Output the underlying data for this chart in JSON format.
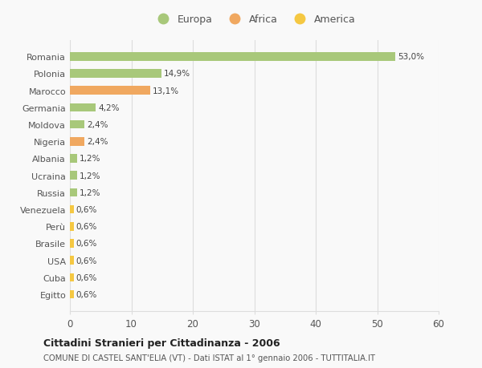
{
  "categories": [
    "Egitto",
    "Cuba",
    "USA",
    "Brasile",
    "Perù",
    "Venezuela",
    "Russia",
    "Ucraina",
    "Albania",
    "Nigeria",
    "Moldova",
    "Germania",
    "Marocco",
    "Polonia",
    "Romania"
  ],
  "values": [
    0.6,
    0.6,
    0.6,
    0.6,
    0.6,
    0.6,
    1.2,
    1.2,
    1.2,
    2.4,
    2.4,
    4.2,
    13.1,
    14.9,
    53.0
  ],
  "colors": [
    "#f5c842",
    "#f5c842",
    "#f5c842",
    "#f5c842",
    "#f5c842",
    "#f5c842",
    "#a8c87a",
    "#a8c87a",
    "#a8c87a",
    "#f0a860",
    "#a8c87a",
    "#a8c87a",
    "#f0a860",
    "#a8c87a",
    "#a8c87a"
  ],
  "labels": [
    "0,6%",
    "0,6%",
    "0,6%",
    "0,6%",
    "0,6%",
    "0,6%",
    "1,2%",
    "1,2%",
    "1,2%",
    "2,4%",
    "2,4%",
    "4,2%",
    "13,1%",
    "14,9%",
    "53,0%"
  ],
  "legend": [
    {
      "label": "Europa",
      "color": "#a8c87a"
    },
    {
      "label": "Africa",
      "color": "#f0a860"
    },
    {
      "label": "America",
      "color": "#f5c842"
    }
  ],
  "title": "Cittadini Stranieri per Cittadinanza - 2006",
  "subtitle": "COMUNE DI CASTEL SANT'ELIA (VT) - Dati ISTAT al 1° gennaio 2006 - TUTTITALIA.IT",
  "xlim": [
    0,
    60
  ],
  "xticks": [
    0,
    10,
    20,
    30,
    40,
    50,
    60
  ],
  "background_color": "#f9f9f9",
  "grid_color": "#dddddd"
}
